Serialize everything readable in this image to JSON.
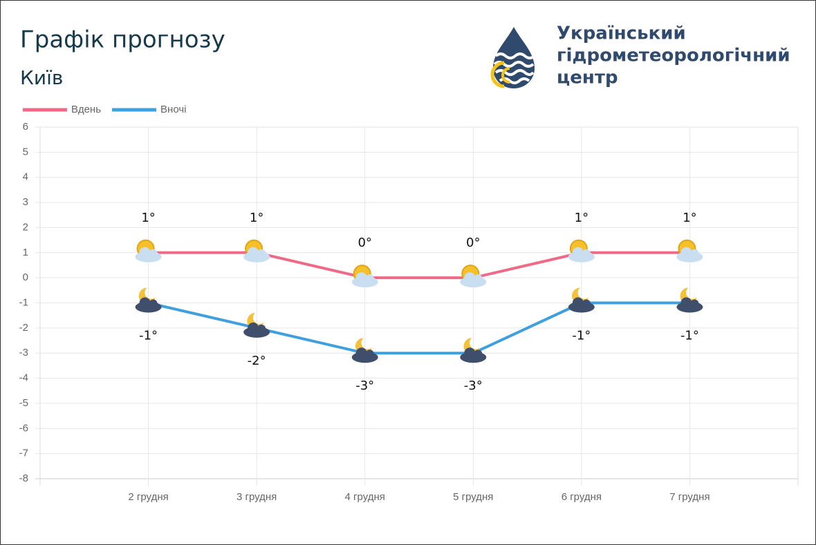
{
  "header": {
    "title": "Графік прогнозу",
    "subtitle": "Київ",
    "logo_lines": [
      "Український",
      "гідрометеорологічний",
      "центр"
    ]
  },
  "chart_data": {
    "type": "line",
    "categories": [
      "2 грудня",
      "3 грудня",
      "4 грудня",
      "5 грудня",
      "6 грудня",
      "7 грудня"
    ],
    "series": [
      {
        "name": "Вдень",
        "color": "#ef6a86",
        "values": [
          1,
          1,
          0,
          0,
          1,
          1
        ],
        "value_labels": [
          "1°",
          "1°",
          "0°",
          "0°",
          "1°",
          "1°"
        ]
      },
      {
        "name": "Вночі",
        "color": "#3fa0dd",
        "values": [
          -1,
          -2,
          -3,
          -3,
          -1,
          -1
        ],
        "value_labels": [
          "-1°",
          "-2°",
          "-3°",
          "-3°",
          "-1°",
          "-1°"
        ]
      }
    ],
    "ylim": [
      -8,
      6
    ],
    "yticks": [
      -8,
      -7,
      -6,
      -5,
      -4,
      -3,
      -2,
      -1,
      0,
      1,
      2,
      3,
      4,
      5,
      6
    ],
    "grid": true,
    "legend": "top-left"
  }
}
